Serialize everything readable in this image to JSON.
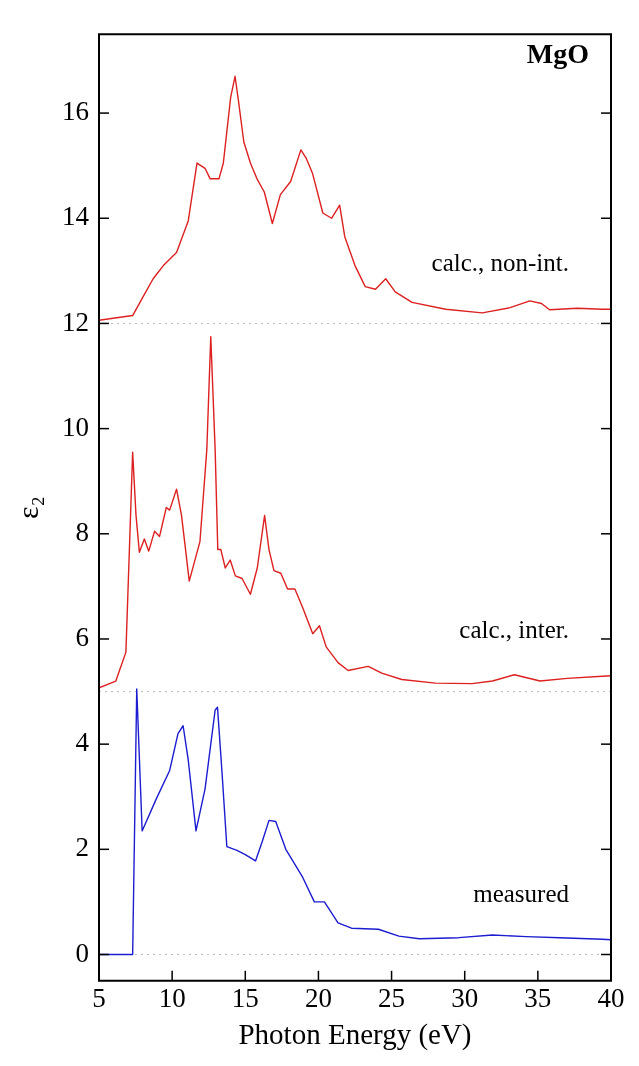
{
  "chart_data": {
    "type": "line",
    "title": "MgO",
    "xlabel": "Photon Energy (eV)",
    "ylabel": "ε₂",
    "xlim": [
      5,
      40
    ],
    "xticks": [
      5,
      10,
      15,
      20,
      25,
      30,
      35,
      40
    ],
    "ylim": [
      -0.5,
      17.5
    ],
    "yticks": [
      0,
      2,
      4,
      6,
      8,
      10,
      12,
      14,
      16
    ],
    "grid": false,
    "legend": false,
    "marker": "none",
    "line_style": "solid",
    "ref_lines": [
      {
        "axis": "y",
        "value": 12,
        "color": "#bbbbbb",
        "line_style": "dotted"
      },
      {
        "axis": "y",
        "value": 5,
        "color": "#bbbbbb",
        "line_style": "dotted"
      },
      {
        "axis": "y",
        "value": 0,
        "color": "#bbbbbb",
        "line_style": "dotted"
      }
    ],
    "series": [
      {
        "name": "calc., non-int.",
        "color": "#dd2020",
        "x": [
          5,
          7.3,
          8.0,
          8.7,
          9.4,
          10.3,
          11.1,
          11.7,
          12.25,
          12.6,
          13.2,
          13.5,
          14.0,
          14.3,
          14.55,
          14.9,
          15.35,
          15.8,
          16.3,
          16.85,
          17.4,
          18.1,
          18.8,
          19.15,
          19.6,
          20.3,
          20.9,
          21.45,
          21.8,
          22.5,
          23.2,
          23.9,
          24.6,
          25.25,
          26.4,
          28.7,
          31.2,
          33.1,
          34.45,
          35.25,
          35.8,
          37.7,
          39.4,
          40
        ],
        "values": [
          12.06,
          12.15,
          12.5,
          12.85,
          13.1,
          13.35,
          13.95,
          15.05,
          14.95,
          14.75,
          14.75,
          15.05,
          16.3,
          16.7,
          16.2,
          15.45,
          15.05,
          14.75,
          14.5,
          13.9,
          14.45,
          14.7,
          15.3,
          15.15,
          14.85,
          14.1,
          14.0,
          14.25,
          13.65,
          13.1,
          12.7,
          12.65,
          12.85,
          12.6,
          12.4,
          12.27,
          12.2,
          12.3,
          12.43,
          12.38,
          12.26,
          12.29,
          12.27,
          12.27
        ]
      },
      {
        "name": "calc., inter.",
        "color": "#dd2020",
        "x": [
          5,
          6.15,
          6.84,
          7.12,
          7.3,
          7.53,
          7.76,
          8.1,
          8.4,
          8.8,
          9.14,
          9.6,
          9.83,
          10.3,
          10.64,
          11.17,
          11.9,
          12.37,
          12.64,
          12.94,
          13.12,
          13.33,
          13.63,
          13.97,
          14.32,
          14.78,
          15.35,
          15.82,
          16.32,
          16.62,
          16.96,
          17.43,
          17.89,
          18.39,
          18.92,
          19.61,
          20.07,
          20.53,
          21.34,
          22.03,
          23.4,
          24.33,
          25.7,
          28.0,
          30.5,
          31.9,
          33.4,
          35.15,
          37.0,
          39.4,
          40
        ],
        "values": [
          5.07,
          5.2,
          5.75,
          8.05,
          9.55,
          8.35,
          7.65,
          7.9,
          7.67,
          8.05,
          7.95,
          8.5,
          8.45,
          8.85,
          8.35,
          7.1,
          7.85,
          9.6,
          11.75,
          9.6,
          7.7,
          7.7,
          7.35,
          7.5,
          7.2,
          7.15,
          6.85,
          7.35,
          8.35,
          7.7,
          7.3,
          7.25,
          6.95,
          6.95,
          6.6,
          6.1,
          6.25,
          5.85,
          5.55,
          5.4,
          5.48,
          5.35,
          5.23,
          5.16,
          5.15,
          5.2,
          5.32,
          5.2,
          5.25,
          5.29,
          5.3
        ]
      },
      {
        "name": "measured",
        "color": "#1c1cd0",
        "x": [
          5,
          7.3,
          7.58,
          7.95,
          8.9,
          9.83,
          10.4,
          10.75,
          11.1,
          11.63,
          12.25,
          12.94,
          13.1,
          13.4,
          13.74,
          14.43,
          15.0,
          15.7,
          16.16,
          16.62,
          17.08,
          17.77,
          18.92,
          19.72,
          20.41,
          21.34,
          22.26,
          24.1,
          25.5,
          26.9,
          29.6,
          31.9,
          34.2,
          36.5,
          39.4,
          40
        ],
        "values": [
          0,
          0,
          5.05,
          2.35,
          2.95,
          3.5,
          4.2,
          4.35,
          3.7,
          2.35,
          3.15,
          4.65,
          4.7,
          3.5,
          2.05,
          1.98,
          1.9,
          1.78,
          2.15,
          2.55,
          2.53,
          2.0,
          1.47,
          1.0,
          1.0,
          0.6,
          0.5,
          0.48,
          0.35,
          0.3,
          0.32,
          0.37,
          0.34,
          0.32,
          0.29,
          0.28
        ]
      }
    ]
  }
}
